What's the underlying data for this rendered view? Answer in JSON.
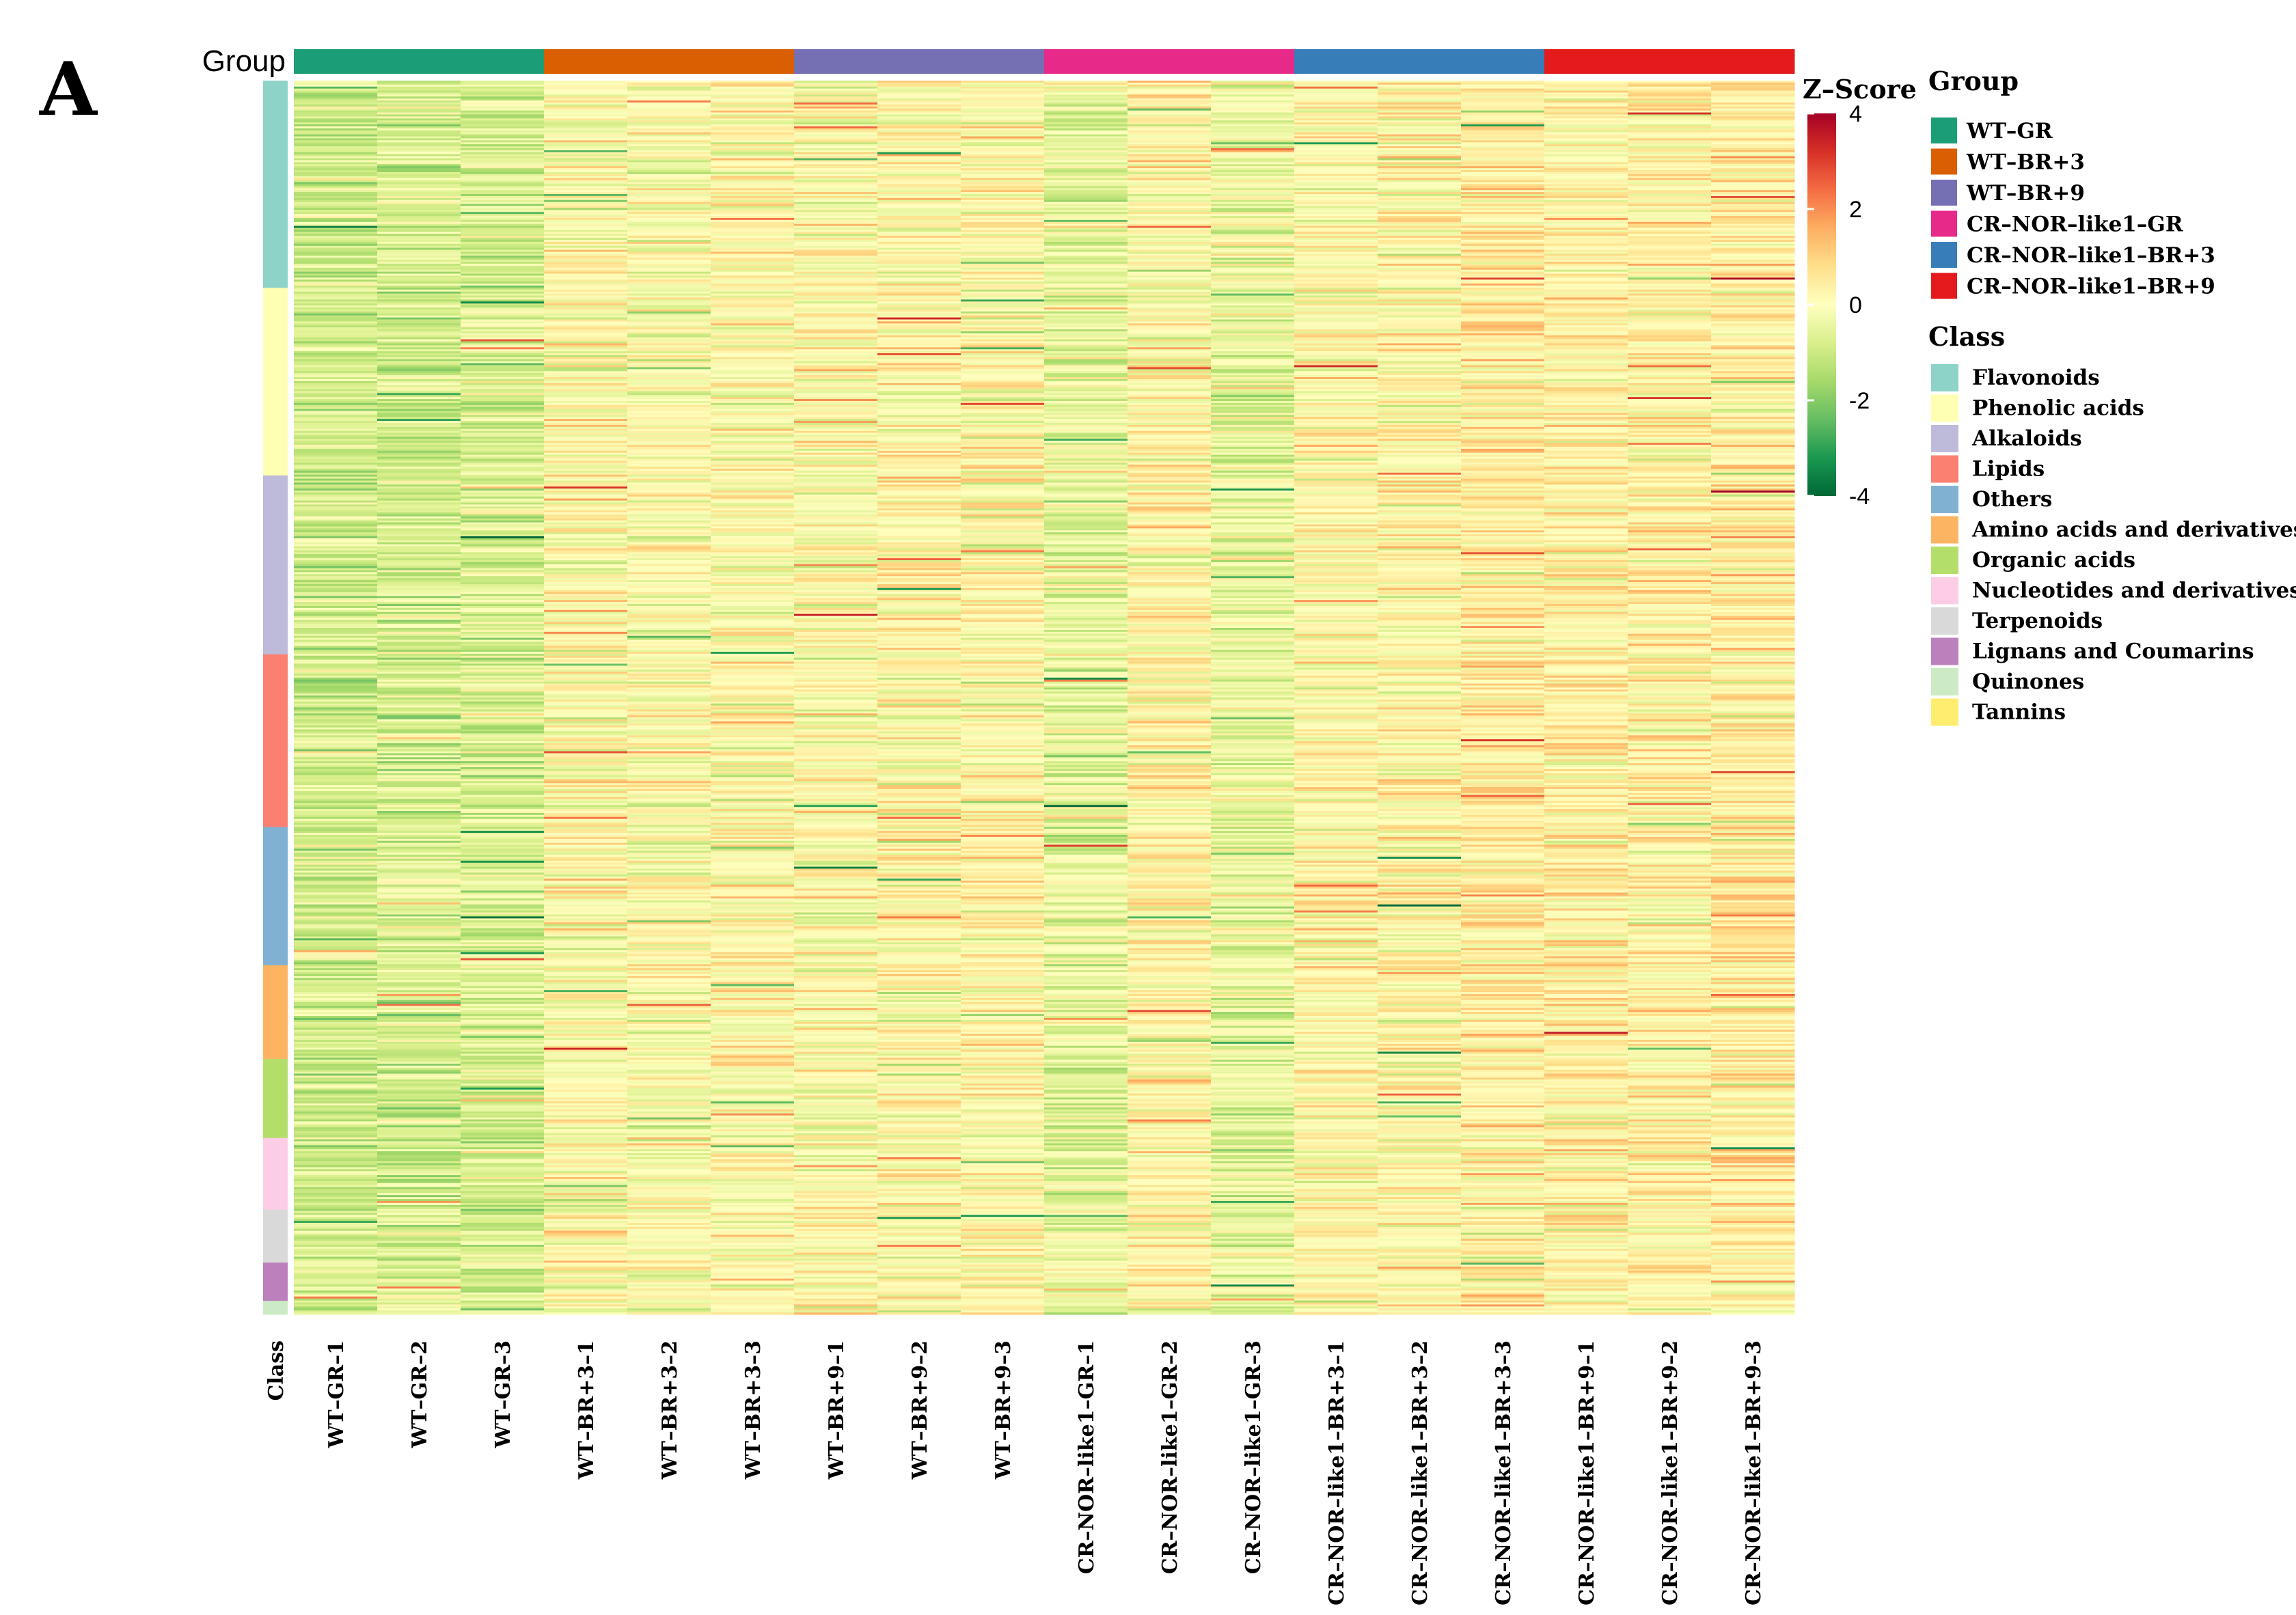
{
  "chart_data": {
    "type": "heatmap",
    "panel_label": "A",
    "group_bar_label": "Group",
    "class_column_label": "Class",
    "colorbar": {
      "title": "Z–Score",
      "ticks": [
        "4",
        "2",
        "0",
        "-2",
        "-4"
      ],
      "range": [
        -4,
        4
      ],
      "colors": [
        "#006837",
        "#1a9850",
        "#66bd63",
        "#a6d96a",
        "#d9ef8b",
        "#ffffbf",
        "#fee08b",
        "#fdae61",
        "#f46d43",
        "#d73027",
        "#a50026"
      ]
    },
    "columns": [
      "WT–GR–1",
      "WT–GR–2",
      "WT–GR–3",
      "WT–BR+3–1",
      "WT–BR+3–2",
      "WT–BR+3–3",
      "WT–BR+9–1",
      "WT–BR+9–2",
      "WT–BR+9–3",
      "CR–NOR–like1–GR–1",
      "CR–NOR–like1–GR–2",
      "CR–NOR–like1–GR–3",
      "CR–NOR–like1–BR+3–1",
      "CR–NOR–like1–BR+3–2",
      "CR–NOR–like1–BR+3–3",
      "CR–NOR–like1–BR+9–1",
      "CR–NOR–like1–BR+9–2",
      "CR–NOR–like1–BR+9–3"
    ],
    "column_bias": [
      -0.9,
      -0.8,
      -0.75,
      0.1,
      0.0,
      0.1,
      0.05,
      0.15,
      0.2,
      -0.45,
      0.25,
      -0.35,
      0.2,
      0.25,
      0.45,
      0.35,
      0.3,
      0.45
    ],
    "group_legend": {
      "title": "Group",
      "items": [
        {
          "label": "WT–GR",
          "color": "#1b9e77"
        },
        {
          "label": "WT–BR+3",
          "color": "#d95f02"
        },
        {
          "label": "WT–BR+9",
          "color": "#7570b3"
        },
        {
          "label": "CR–NOR–like1–GR",
          "color": "#e7298a"
        },
        {
          "label": "CR–NOR–like1–BR+3",
          "color": "#377eb8"
        },
        {
          "label": "CR–NOR–like1–BR+9",
          "color": "#e41a1c"
        }
      ]
    },
    "class_legend": {
      "title": "Class",
      "items": [
        {
          "label": "Flavonoids",
          "color": "#8dd3c7",
          "share": 0.168
        },
        {
          "label": "Phenolic acids",
          "color": "#ffffb3",
          "share": 0.152
        },
        {
          "label": "Alkaloids",
          "color": "#bebada",
          "share": 0.145
        },
        {
          "label": "Lipids",
          "color": "#fb8072",
          "share": 0.14
        },
        {
          "label": "Others",
          "color": "#80b1d3",
          "share": 0.112
        },
        {
          "label": "Amino acids and derivatives",
          "color": "#fdb462",
          "share": 0.076
        },
        {
          "label": "Organic acids",
          "color": "#b3de69",
          "share": 0.064
        },
        {
          "label": "Nucleotides and derivatives",
          "color": "#fccde5",
          "share": 0.058
        },
        {
          "label": "Terpenoids",
          "color": "#d9d9d9",
          "share": 0.043
        },
        {
          "label": "Lignans and Coumarins",
          "color": "#bc80bd",
          "share": 0.031
        },
        {
          "label": "Quinones",
          "color": "#ccebc5",
          "share": 0.011
        },
        {
          "label": "Tannins",
          "color": "#ffed6f",
          "share": 0.0
        }
      ]
    },
    "row_count": 620
  }
}
